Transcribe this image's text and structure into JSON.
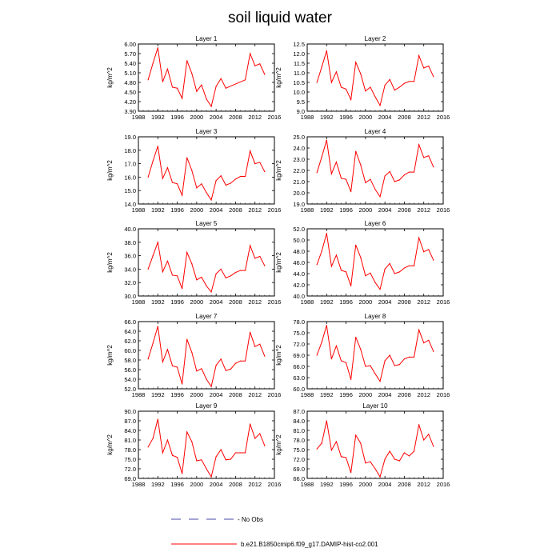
{
  "title": "soil liquid water",
  "legend": {
    "obs_label": "- No Obs",
    "model_label": "b.e21.B1850cmip6.f09_g17.DAMIP-hist-co2.001",
    "obs_color": "#4a4aa8",
    "model_color": "#ff0000"
  },
  "chart_data": [
    {
      "type": "line",
      "title": "Layer 1",
      "ylabel": "kg/m^2",
      "xlim": [
        1988,
        2016
      ],
      "xticks": [
        1988,
        1992,
        1996,
        2000,
        2004,
        2008,
        2012,
        2016
      ],
      "ylim": [
        3.9,
        6.0
      ],
      "yticks": [
        "3.90",
        "4.20",
        "4.50",
        "4.80",
        "5.10",
        "5.40",
        "5.70",
        "6.00"
      ],
      "series": [
        {
          "color": "#ff0000",
          "x": [
            1990,
            1991,
            1992,
            1993,
            1994,
            1995,
            1996,
            1997,
            1998,
            1999,
            2000,
            2001,
            2002,
            2003,
            2004,
            2005,
            2006,
            2010,
            2011,
            2012,
            2013,
            2014
          ],
          "values": [
            4.88,
            5.4,
            5.88,
            4.82,
            5.22,
            4.65,
            4.62,
            4.3,
            5.48,
            5.08,
            4.52,
            4.72,
            4.28,
            4.05,
            4.68,
            4.92,
            4.62,
            4.88,
            5.7,
            5.32,
            5.38,
            5.05
          ]
        }
      ]
    },
    {
      "type": "line",
      "title": "Layer 2",
      "ylabel": "kg/m^2",
      "xlim": [
        1988,
        2016
      ],
      "xticks": [
        1988,
        1992,
        1996,
        2000,
        2004,
        2008,
        2012,
        2016
      ],
      "ylim": [
        9.0,
        12.5
      ],
      "yticks": [
        "9.0",
        "9.5",
        "10.0",
        "10.5",
        "11.0",
        "11.5",
        "12.0",
        "12.5"
      ],
      "series": [
        {
          "color": "#ff0000",
          "x": [
            1990,
            1991,
            1992,
            1993,
            1994,
            1995,
            1996,
            1997,
            1998,
            1999,
            2000,
            2001,
            2002,
            2003,
            2004,
            2005,
            2006,
            2007,
            2008,
            2009,
            2010,
            2011,
            2012,
            2013,
            2014
          ],
          "values": [
            10.5,
            11.3,
            12.15,
            10.5,
            11.05,
            10.25,
            10.15,
            9.6,
            11.55,
            10.95,
            10.05,
            10.25,
            9.75,
            9.3,
            10.35,
            10.65,
            10.1,
            10.25,
            10.45,
            10.55,
            10.55,
            11.9,
            11.25,
            11.35,
            10.8
          ]
        }
      ]
    },
    {
      "type": "line",
      "title": "Layer 3",
      "ylabel": "kg/m^2",
      "xlim": [
        1988,
        2016
      ],
      "xticks": [
        1988,
        1992,
        1996,
        2000,
        2004,
        2008,
        2012,
        2016
      ],
      "ylim": [
        14.0,
        19.0
      ],
      "yticks": [
        "14.0",
        "15.0",
        "16.0",
        "17.0",
        "18.0",
        "19.0"
      ],
      "series": [
        {
          "color": "#ff0000",
          "x": [
            1990,
            1991,
            1992,
            1993,
            1994,
            1995,
            1996,
            1997,
            1998,
            1999,
            2000,
            2001,
            2002,
            2003,
            2004,
            2005,
            2006,
            2007,
            2008,
            2009,
            2010,
            2011,
            2012,
            2013,
            2014
          ],
          "values": [
            16.0,
            17.2,
            18.3,
            15.9,
            16.7,
            15.6,
            15.5,
            14.65,
            17.45,
            16.5,
            15.2,
            15.5,
            14.85,
            14.3,
            15.75,
            16.1,
            15.4,
            15.55,
            15.85,
            16.05,
            16.05,
            17.95,
            17.0,
            17.1,
            16.4
          ]
        }
      ]
    },
    {
      "type": "line",
      "title": "Layer 4",
      "ylabel": "kg/m^2",
      "xlim": [
        1988,
        2016
      ],
      "xticks": [
        1988,
        1992,
        1996,
        2000,
        2004,
        2008,
        2012,
        2016
      ],
      "ylim": [
        19.0,
        25.0
      ],
      "yticks": [
        "19.0",
        "20.0",
        "21.0",
        "22.0",
        "23.0",
        "24.0",
        "25.0"
      ],
      "series": [
        {
          "color": "#ff0000",
          "x": [
            1990,
            1991,
            1992,
            1993,
            1994,
            1995,
            1996,
            1997,
            1998,
            1999,
            2000,
            2001,
            2002,
            2003,
            2004,
            2005,
            2006,
            2007,
            2008,
            2009,
            2010,
            2011,
            2012,
            2013,
            2014
          ],
          "values": [
            21.8,
            23.2,
            24.7,
            21.7,
            22.75,
            21.3,
            21.2,
            20.1,
            23.7,
            22.5,
            20.9,
            21.2,
            20.3,
            19.65,
            21.5,
            21.9,
            21.0,
            21.15,
            21.6,
            21.85,
            21.85,
            24.3,
            23.15,
            23.3,
            22.3
          ]
        }
      ]
    },
    {
      "type": "line",
      "title": "Layer 5",
      "ylabel": "kg/m^2",
      "xlim": [
        1988,
        2016
      ],
      "xticks": [
        1988,
        1992,
        1996,
        2000,
        2004,
        2008,
        2012,
        2016
      ],
      "ylim": [
        30.0,
        40.0
      ],
      "yticks": [
        "30.0",
        "32.0",
        "34.0",
        "36.0",
        "38.0",
        "40.0"
      ],
      "series": [
        {
          "color": "#ff0000",
          "x": [
            1990,
            1991,
            1992,
            1993,
            1994,
            1995,
            1996,
            1997,
            1998,
            1999,
            2000,
            2001,
            2002,
            2003,
            2004,
            2005,
            2006,
            2007,
            2008,
            2009,
            2010,
            2011,
            2012,
            2013,
            2014
          ],
          "values": [
            34.0,
            36.0,
            38.0,
            33.6,
            35.2,
            33.1,
            33.0,
            31.1,
            36.5,
            34.8,
            32.4,
            32.8,
            31.5,
            30.6,
            33.3,
            34.0,
            32.7,
            33.0,
            33.5,
            33.8,
            33.8,
            37.5,
            35.6,
            35.9,
            34.5
          ]
        }
      ]
    },
    {
      "type": "line",
      "title": "Layer 6",
      "ylabel": "kg/m^2",
      "xlim": [
        1988,
        2016
      ],
      "xticks": [
        1988,
        1992,
        1996,
        2000,
        2004,
        2008,
        2012,
        2016
      ],
      "ylim": [
        40.0,
        52.0
      ],
      "yticks": [
        "40.0",
        "42.0",
        "44.0",
        "46.0",
        "48.0",
        "50.0",
        "52.0"
      ],
      "series": [
        {
          "color": "#ff0000",
          "x": [
            1990,
            1991,
            1992,
            1993,
            1994,
            1995,
            1996,
            1997,
            1998,
            1999,
            2000,
            2001,
            2002,
            2003,
            2004,
            2005,
            2006,
            2007,
            2008,
            2009,
            2010,
            2011,
            2012,
            2013,
            2014
          ],
          "values": [
            45.6,
            48.0,
            51.2,
            45.3,
            47.3,
            44.6,
            44.3,
            41.8,
            49.1,
            46.9,
            43.6,
            44.1,
            42.4,
            41.2,
            44.8,
            45.8,
            44.0,
            44.3,
            45.0,
            45.4,
            45.4,
            50.4,
            47.9,
            48.3,
            46.4
          ]
        }
      ]
    },
    {
      "type": "line",
      "title": "Layer 7",
      "ylabel": "kg/m^2",
      "xlim": [
        1988,
        2016
      ],
      "xticks": [
        1988,
        1992,
        1996,
        2000,
        2004,
        2008,
        2012,
        2016
      ],
      "ylim": [
        52.0,
        66.0
      ],
      "yticks": [
        "52.0",
        "54.0",
        "56.0",
        "58.0",
        "60.0",
        "62.0",
        "64.0",
        "66.0"
      ],
      "series": [
        {
          "color": "#ff0000",
          "x": [
            1990,
            1991,
            1992,
            1993,
            1994,
            1995,
            1996,
            1997,
            1998,
            1999,
            2000,
            2001,
            2002,
            2003,
            2004,
            2005,
            2006,
            2007,
            2008,
            2009,
            2010,
            2011,
            2012,
            2013,
            2014
          ],
          "values": [
            58.2,
            61.5,
            65.0,
            57.6,
            60.2,
            56.8,
            56.5,
            53.0,
            62.3,
            59.6,
            55.7,
            56.2,
            54.0,
            52.5,
            56.9,
            58.2,
            55.8,
            56.1,
            57.3,
            57.8,
            57.8,
            63.8,
            60.8,
            61.3,
            58.8
          ]
        }
      ]
    },
    {
      "type": "line",
      "title": "Layer 8",
      "ylabel": "kg/m^2",
      "xlim": [
        1988,
        2016
      ],
      "xticks": [
        1988,
        1992,
        1996,
        2000,
        2004,
        2008,
        2012,
        2016
      ],
      "ylim": [
        60.0,
        78.0
      ],
      "yticks": [
        "60.0",
        "63.0",
        "66.0",
        "69.0",
        "72.0",
        "75.0",
        "78.0"
      ],
      "series": [
        {
          "color": "#ff0000",
          "x": [
            1990,
            1991,
            1992,
            1993,
            1994,
            1995,
            1996,
            1997,
            1998,
            1999,
            2000,
            2001,
            2002,
            2003,
            2004,
            2005,
            2006,
            2007,
            2008,
            2009,
            2010,
            2011,
            2012,
            2013,
            2014
          ],
          "values": [
            69.0,
            72.5,
            77.0,
            68.0,
            71.5,
            67.5,
            67.0,
            62.5,
            73.8,
            70.6,
            66.0,
            66.2,
            64.0,
            62.0,
            67.5,
            69.0,
            66.2,
            66.5,
            68.0,
            68.5,
            68.5,
            75.8,
            72.3,
            73.0,
            70.0
          ]
        }
      ]
    },
    {
      "type": "line",
      "title": "Layer 9",
      "ylabel": "kg/m^2",
      "xlim": [
        1988,
        2016
      ],
      "xticks": [
        1988,
        1992,
        1996,
        2000,
        2004,
        2008,
        2012,
        2016
      ],
      "ylim": [
        69.0,
        90.0
      ],
      "yticks": [
        "69.0",
        "72.0",
        "75.0",
        "78.0",
        "81.0",
        "84.0",
        "87.0",
        "90.0"
      ],
      "series": [
        {
          "color": "#ff0000",
          "x": [
            1990,
            1991,
            1992,
            1993,
            1994,
            1995,
            1996,
            1997,
            1998,
            1999,
            2000,
            2001,
            2002,
            2003,
            2004,
            2005,
            2006,
            2007,
            2008,
            2009,
            2010,
            2011,
            2012,
            2013,
            2014
          ],
          "values": [
            78.8,
            81.5,
            87.5,
            77.0,
            81.0,
            76.2,
            75.6,
            70.5,
            83.5,
            80.5,
            74.5,
            74.8,
            72.0,
            69.5,
            75.8,
            78.0,
            74.8,
            75.0,
            77.0,
            77.0,
            77.0,
            86.0,
            81.5,
            83.0,
            79.2
          ]
        }
      ]
    },
    {
      "type": "line",
      "title": "Layer 10",
      "ylabel": "kg/m^2",
      "xlim": [
        1988,
        2016
      ],
      "xticks": [
        1988,
        1992,
        1996,
        2000,
        2004,
        2008,
        2012,
        2016
      ],
      "ylim": [
        66.0,
        87.0
      ],
      "yticks": [
        "66.0",
        "69.0",
        "72.0",
        "75.0",
        "78.0",
        "81.0",
        "84.0",
        "87.0"
      ],
      "series": [
        {
          "color": "#ff0000",
          "x": [
            1990,
            1991,
            1992,
            1993,
            1994,
            1995,
            1996,
            1997,
            1998,
            1999,
            2000,
            2001,
            2002,
            2003,
            2004,
            2005,
            2006,
            2007,
            2008,
            2009,
            2010,
            2011,
            2012,
            2013,
            2014
          ],
          "values": [
            75.2,
            77.0,
            84.0,
            74.8,
            77.5,
            72.8,
            72.5,
            67.8,
            79.5,
            77.0,
            70.8,
            71.2,
            69.0,
            66.5,
            72.0,
            74.5,
            72.0,
            71.5,
            74.0,
            73.0,
            74.5,
            82.8,
            78.0,
            79.8,
            76.0
          ]
        }
      ]
    }
  ]
}
